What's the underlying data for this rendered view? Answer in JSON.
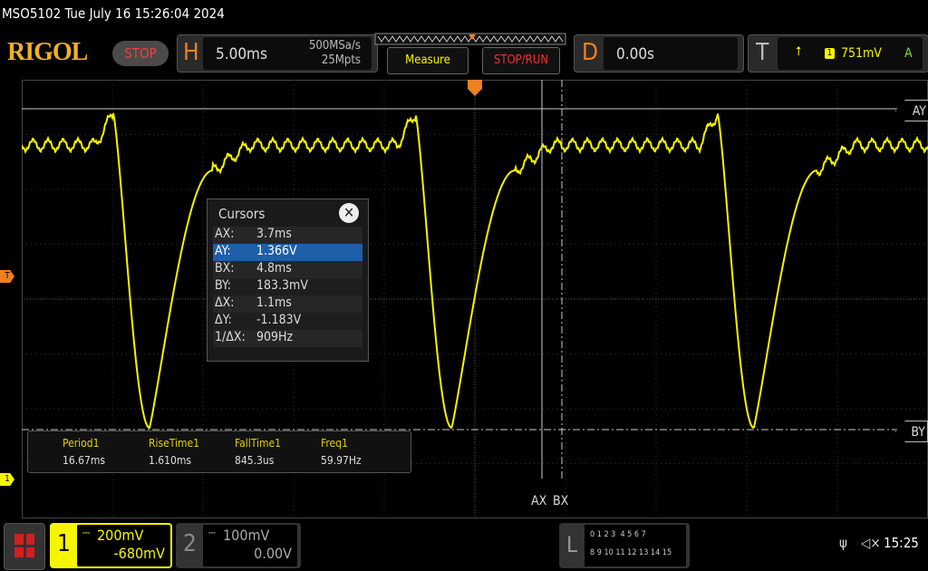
{
  "title": "MSO5102  Tue July 16 15:26:04 2024",
  "logo": "RIGOL",
  "run_state": "STOP",
  "horizontal": {
    "letter": "H",
    "timebase": "5.00ms",
    "sample_rate": "500MSa/s",
    "memory_depth": "25Mpts"
  },
  "buttons": {
    "measure": "Measure",
    "stop_run": "STOP/RUN"
  },
  "delay": {
    "letter": "D",
    "value": "0.00s"
  },
  "trigger": {
    "letter": "T",
    "source": "1",
    "level": "751mV",
    "mode": "A",
    "slope_icon": "rising-edge-icon"
  },
  "markers": {
    "trigger_left": "T",
    "ch1": "1",
    "ay": "AY",
    "by": "BY",
    "ax": "AX",
    "bx": "BX"
  },
  "cursors": {
    "title": "Cursors",
    "rows": [
      {
        "label": "AX:",
        "value": "3.7ms"
      },
      {
        "label": "AY:",
        "value": "1.366V",
        "selected": true
      },
      {
        "label": "BX:",
        "value": "4.8ms"
      },
      {
        "label": "BY:",
        "value": "183.3mV"
      },
      {
        "label": "ΔX:",
        "value": "1.1ms"
      },
      {
        "label": "ΔY:",
        "value": "-1.183V"
      },
      {
        "label": "1/ΔX:",
        "value": "909Hz"
      }
    ]
  },
  "measurements": [
    {
      "name": "Period1",
      "value": "16.67ms"
    },
    {
      "name": "RiseTime1",
      "value": "1.610ms"
    },
    {
      "name": "FallTime1",
      "value": "845.3us"
    },
    {
      "name": "Freq1",
      "value": "59.97Hz"
    }
  ],
  "channels": [
    {
      "num": "1",
      "scale": "200mV",
      "offset": "-680mV",
      "active": true,
      "color": "#f5f500"
    },
    {
      "num": "2",
      "scale": "100mV",
      "offset": "0.00V",
      "active": false
    }
  ],
  "logic": {
    "letter": "L",
    "row1": "0 1 2 3  4 5 6 7",
    "row2": "8 9 10 11 12 13 14 15"
  },
  "status": {
    "time": "15:25",
    "usb_icon": "usb-icon",
    "sound_icon": "muted-speaker-icon"
  },
  "waveform": {
    "period_ms": 16.67,
    "timebase_ms_per_div": 5,
    "color": "#f5f500"
  }
}
